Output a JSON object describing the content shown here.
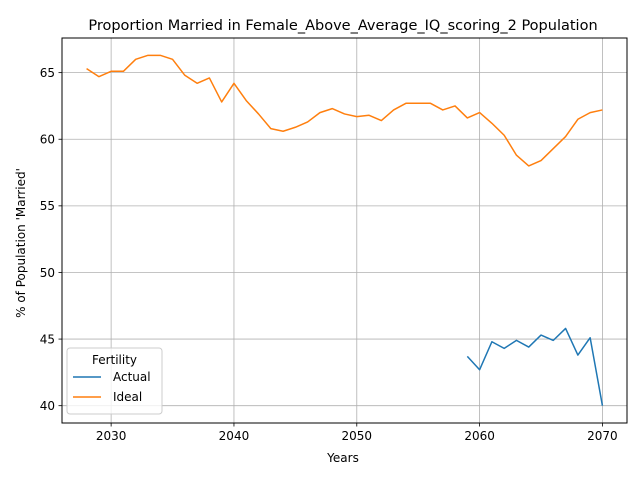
{
  "chart_data": {
    "type": "line",
    "title": "Proportion Married in Female_Above_Average_IQ_scoring_2 Population",
    "xlabel": "Years",
    "ylabel": "% of Population 'Married'",
    "xlim": [
      2026,
      2072
    ],
    "ylim": [
      38.7,
      67.6
    ],
    "xticks": [
      2030,
      2040,
      2050,
      2060,
      2070
    ],
    "yticks": [
      40,
      45,
      50,
      55,
      60,
      65
    ],
    "grid": true,
    "legend": {
      "title": "Fertility",
      "placement": "lower-left"
    },
    "series": [
      {
        "name": "Actual",
        "color": "#1f77b4",
        "x": [
          2059,
          2060,
          2061,
          2062,
          2063,
          2064,
          2065,
          2066,
          2067,
          2068,
          2069,
          2070
        ],
        "values": [
          43.7,
          42.7,
          44.8,
          44.3,
          44.9,
          44.4,
          45.3,
          44.9,
          45.8,
          43.8,
          45.1,
          40.0
        ]
      },
      {
        "name": "Ideal",
        "color": "#ff7f0e",
        "x": [
          2028,
          2029,
          2030,
          2031,
          2032,
          2033,
          2034,
          2035,
          2036,
          2037,
          2038,
          2039,
          2040,
          2041,
          2042,
          2043,
          2044,
          2045,
          2046,
          2047,
          2048,
          2049,
          2050,
          2051,
          2052,
          2053,
          2054,
          2055,
          2056,
          2057,
          2058,
          2059,
          2060,
          2061,
          2062,
          2063,
          2064,
          2065,
          2066,
          2067,
          2068,
          2069,
          2070
        ],
        "values": [
          65.3,
          64.7,
          65.1,
          65.1,
          66.0,
          66.3,
          66.3,
          66.0,
          64.8,
          64.2,
          64.6,
          62.8,
          64.2,
          62.9,
          61.9,
          60.8,
          60.6,
          60.9,
          61.3,
          62.0,
          62.3,
          61.9,
          61.7,
          61.8,
          61.4,
          62.2,
          62.7,
          62.7,
          62.7,
          62.2,
          62.5,
          61.6,
          62.0,
          61.2,
          60.3,
          58.8,
          58.0,
          58.4,
          59.3,
          60.2,
          61.5,
          62.0,
          62.2
        ]
      }
    ]
  }
}
